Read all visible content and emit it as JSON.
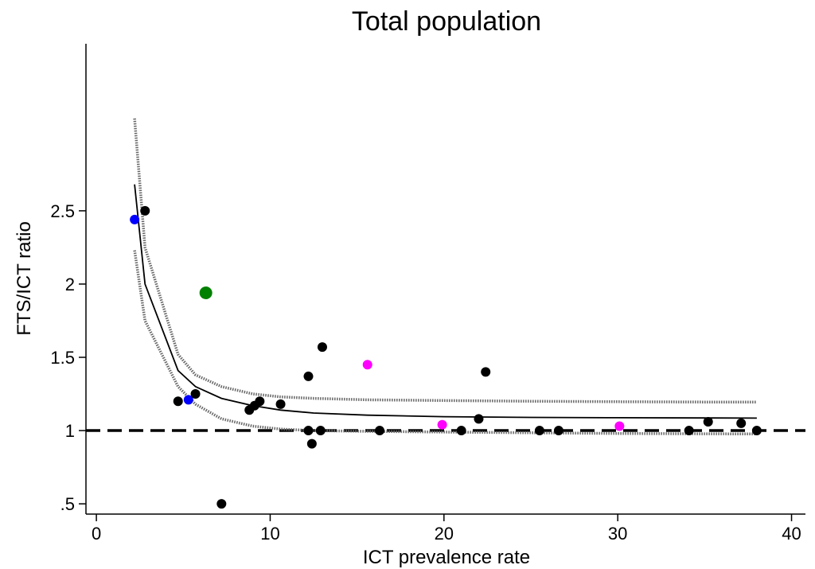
{
  "chart_data": {
    "type": "scatter",
    "title": "Total population",
    "xlabel": "ICT prevalence rate",
    "ylabel": "FTS/ICT ratio",
    "xlim": [
      -0.6,
      40.8
    ],
    "ylim": [
      0.43,
      3.64
    ],
    "x_ticks": [
      0,
      10,
      20,
      30,
      40
    ],
    "x_tick_labels": [
      "0",
      "10",
      "20",
      "30",
      "40"
    ],
    "y_ticks": [
      0.5,
      1,
      1.5,
      2,
      2.5
    ],
    "y_tick_labels": [
      ".5",
      "1",
      "1.5",
      "2",
      "2.5"
    ],
    "grid": false,
    "reference_line": {
      "y": 1,
      "style": "dashed",
      "color": "#000000"
    },
    "colors": {
      "default": "#000000",
      "blue": "#0000ff",
      "green": "#008000",
      "magenta": "#ff00ff",
      "ci_band": "#666666"
    },
    "points": [
      {
        "x": 2.8,
        "y": 2.5,
        "color": "black"
      },
      {
        "x": 2.2,
        "y": 2.44,
        "color": "blue"
      },
      {
        "x": 5.3,
        "y": 1.21,
        "color": "blue"
      },
      {
        "x": 6.3,
        "y": 1.94,
        "color": "green",
        "large": true
      },
      {
        "x": 4.7,
        "y": 1.2,
        "color": "black"
      },
      {
        "x": 5.7,
        "y": 1.25,
        "color": "black"
      },
      {
        "x": 7.2,
        "y": 0.5,
        "color": "black"
      },
      {
        "x": 8.8,
        "y": 1.14,
        "color": "black"
      },
      {
        "x": 9.1,
        "y": 1.17,
        "color": "black"
      },
      {
        "x": 9.4,
        "y": 1.2,
        "color": "black"
      },
      {
        "x": 10.6,
        "y": 1.18,
        "color": "black"
      },
      {
        "x": 12.2,
        "y": 1.37,
        "color": "black"
      },
      {
        "x": 12.2,
        "y": 1.0,
        "color": "black"
      },
      {
        "x": 12.4,
        "y": 0.91,
        "color": "black"
      },
      {
        "x": 12.9,
        "y": 1.0,
        "color": "black"
      },
      {
        "x": 13.0,
        "y": 1.57,
        "color": "black"
      },
      {
        "x": 15.6,
        "y": 1.45,
        "color": "magenta"
      },
      {
        "x": 16.3,
        "y": 1.0,
        "color": "black"
      },
      {
        "x": 19.9,
        "y": 1.04,
        "color": "magenta"
      },
      {
        "x": 21.0,
        "y": 1.0,
        "color": "black"
      },
      {
        "x": 22.0,
        "y": 1.08,
        "color": "black"
      },
      {
        "x": 22.4,
        "y": 1.4,
        "color": "black"
      },
      {
        "x": 25.5,
        "y": 1.0,
        "color": "black"
      },
      {
        "x": 26.6,
        "y": 1.0,
        "color": "black"
      },
      {
        "x": 30.1,
        "y": 1.03,
        "color": "magenta"
      },
      {
        "x": 34.1,
        "y": 1.0,
        "color": "black"
      },
      {
        "x": 35.2,
        "y": 1.06,
        "color": "black"
      },
      {
        "x": 37.1,
        "y": 1.05,
        "color": "black"
      },
      {
        "x": 38.0,
        "y": 1.0,
        "color": "black"
      }
    ],
    "fit_line": {
      "x": [
        2.2,
        2.8,
        4.7,
        5.7,
        7.2,
        9.0,
        10.6,
        12.5,
        15.6,
        20.0,
        25.0,
        30.0,
        35.0,
        38.0
      ],
      "y": [
        2.68,
        2.0,
        1.41,
        1.3,
        1.22,
        1.17,
        1.14,
        1.12,
        1.105,
        1.095,
        1.09,
        1.088,
        1.086,
        1.085
      ]
    },
    "ci_upper": {
      "x": [
        2.2,
        2.8,
        4.7,
        5.7,
        7.2,
        9.0,
        10.6,
        12.5,
        15.6,
        20.0,
        25.0,
        30.0,
        35.0,
        38.0
      ],
      "y": [
        3.13,
        2.25,
        1.52,
        1.38,
        1.3,
        1.25,
        1.23,
        1.22,
        1.21,
        1.205,
        1.2,
        1.197,
        1.195,
        1.195
      ]
    },
    "ci_lower": {
      "x": [
        2.2,
        2.8,
        4.7,
        5.7,
        7.2,
        9.0,
        10.6,
        12.5,
        15.6,
        20.0,
        25.0,
        30.0,
        35.0,
        38.0
      ],
      "y": [
        2.23,
        1.75,
        1.3,
        1.18,
        1.08,
        1.03,
        1.01,
        1.0,
        0.995,
        0.99,
        0.985,
        0.98,
        0.978,
        0.977
      ]
    }
  }
}
